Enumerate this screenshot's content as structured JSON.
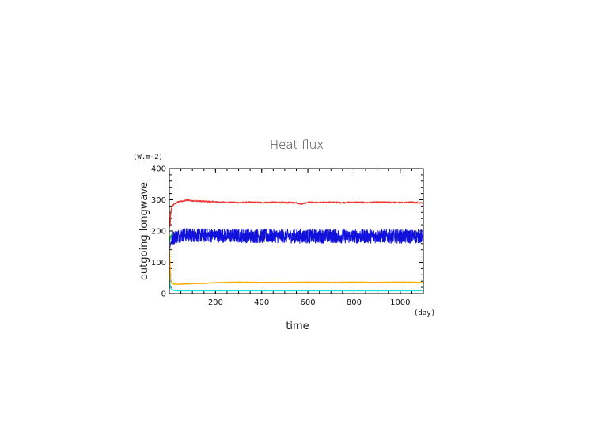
{
  "chart_data": {
    "type": "line",
    "title": "Heat flux",
    "xlabel": "time",
    "ylabel": "outgoing longwave",
    "x_unit": "(day)",
    "y_unit": "(W.m−2)",
    "xlim": [
      0,
      1100
    ],
    "ylim": [
      0,
      400
    ],
    "x_ticks": [
      "200",
      "400",
      "600",
      "800",
      "1000"
    ],
    "x_tick_values": [
      200,
      400,
      600,
      800,
      1000
    ],
    "y_ticks": [
      "0",
      "100",
      "200",
      "300",
      "400"
    ],
    "y_tick_values": [
      0,
      100,
      200,
      300,
      400
    ],
    "grid": false,
    "series": [
      {
        "color": "#ee3333",
        "x": [
          0,
          3,
          6,
          10,
          15,
          20,
          30,
          40,
          60,
          80,
          100,
          150,
          200,
          250,
          300,
          350,
          400,
          450,
          500,
          550,
          570,
          600,
          650,
          700,
          750,
          800,
          850,
          900,
          950,
          1000,
          1050,
          1100
        ],
        "y": [
          230,
          215,
          260,
          275,
          282,
          285,
          290,
          294,
          296,
          299,
          297,
          295,
          293,
          292,
          291,
          292,
          291,
          292,
          291,
          291,
          287,
          292,
          291,
          292,
          291,
          292,
          291,
          292,
          292,
          291,
          292,
          290
        ],
        "noise": 2
      },
      {
        "color": "#1111dd",
        "x": [
          0,
          3,
          6,
          10,
          15,
          20,
          30,
          40,
          60,
          100,
          200,
          300,
          400,
          500,
          600,
          700,
          800,
          900,
          1000,
          1100
        ],
        "y": [
          120,
          150,
          160,
          175,
          178,
          180,
          182,
          185,
          188,
          187,
          186,
          185,
          184,
          184,
          183,
          184,
          183,
          184,
          183,
          183
        ],
        "noise": 22
      },
      {
        "color": "#22bb22",
        "x": [
          0,
          3,
          6,
          10,
          14,
          18
        ],
        "y": [
          160,
          175,
          185,
          188,
          190,
          190
        ],
        "noise": 0
      },
      {
        "color": "#ffaa00",
        "x": [
          0,
          3,
          6,
          10,
          15,
          20,
          30,
          40,
          60,
          100,
          150,
          200,
          250,
          300,
          400,
          500,
          600,
          700,
          800,
          900,
          1000,
          1100
        ],
        "y": [
          160,
          80,
          45,
          35,
          32,
          31,
          30,
          30,
          31,
          32,
          33,
          35,
          36,
          37,
          36,
          36,
          37,
          36,
          37,
          36,
          37,
          36
        ],
        "noise": 0.8
      },
      {
        "color": "#22dddd",
        "x": [
          0,
          3,
          6,
          10,
          15,
          20,
          30,
          40,
          60,
          100,
          200,
          300,
          400,
          500,
          600,
          700,
          800,
          900,
          1000,
          1100
        ],
        "y": [
          60,
          30,
          18,
          13,
          11,
          10,
          9,
          9,
          9,
          9,
          9,
          9,
          9,
          9,
          9,
          9,
          9,
          9,
          9,
          9
        ],
        "noise": 0.3
      }
    ]
  }
}
